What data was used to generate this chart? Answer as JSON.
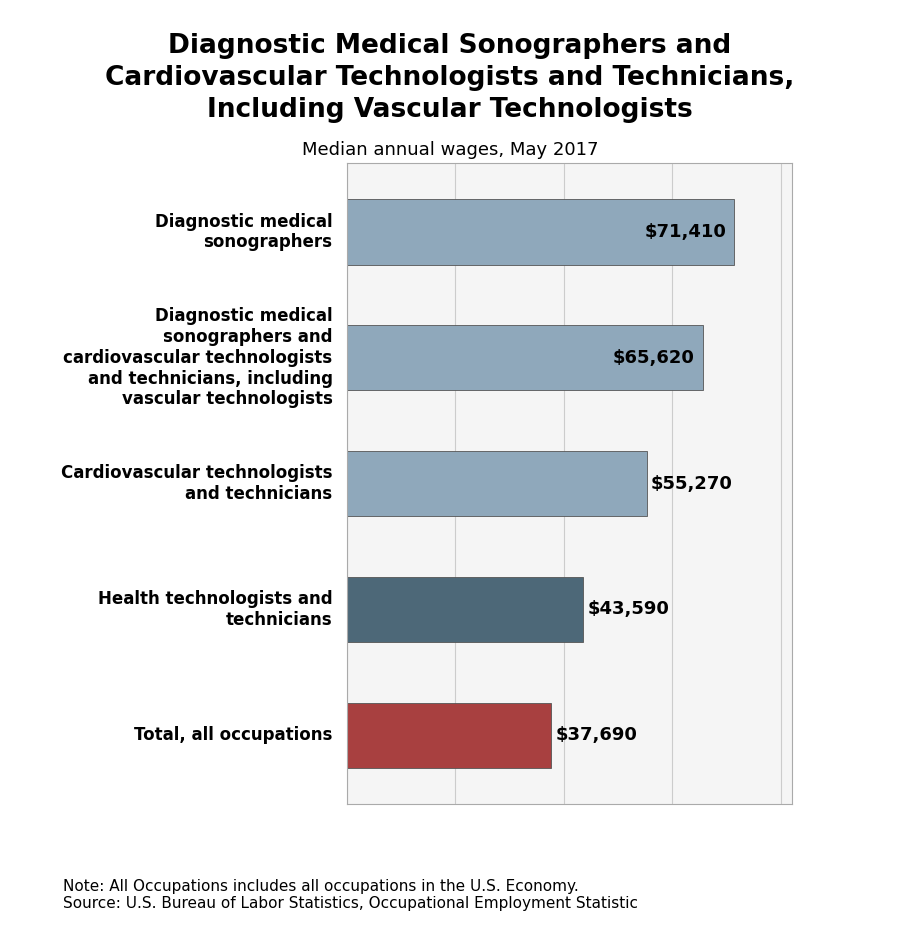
{
  "title": "Diagnostic Medical Sonographers and\nCardiovascular Technologists and Technicians,\nIncluding Vascular Technologists",
  "subtitle": "Median annual wages, May 2017",
  "categories": [
    "Diagnostic medical\nsonographers",
    "Diagnostic medical\nsonographers and\ncardiovascular technologists\nand technicians, including\nvascular technologists",
    "Cardiovascular technologists\nand technicians",
    "Health technologists and\ntechnicians",
    "Total, all occupations"
  ],
  "values": [
    71410,
    65620,
    55270,
    43590,
    37690
  ],
  "bar_colors": [
    "#8fa8bb",
    "#8fa8bb",
    "#8fa8bb",
    "#4d6878",
    "#a84040"
  ],
  "value_labels": [
    "$71,410",
    "$65,620",
    "$55,270",
    "$43,590",
    "$37,690"
  ],
  "label_inside": [
    true,
    true,
    false,
    false,
    false
  ],
  "note": "Note: All Occupations includes all occupations in the U.S. Economy.\nSource: U.S. Bureau of Labor Statistics, Occupational Employment Statistic",
  "xlim": [
    0,
    82000
  ],
  "background_color": "#ffffff",
  "plot_bg_color": "#f5f5f5",
  "bar_edge_color": "#555555",
  "title_fontsize": 19,
  "subtitle_fontsize": 13,
  "label_fontsize": 12,
  "value_fontsize": 13,
  "note_fontsize": 11,
  "grid_color": "#cccccc",
  "grid_positions": [
    0,
    20000,
    40000,
    60000,
    80000
  ]
}
